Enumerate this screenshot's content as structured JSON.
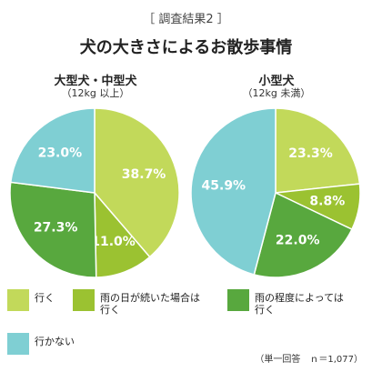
{
  "header": {
    "survey_label": "［ 調査結果2 ］",
    "title": "犬の大きさによるお散歩事情"
  },
  "colors": {
    "walk": "#c2d95a",
    "walk_rain": "#9bc231",
    "walk_moderate": "#58a83e",
    "no_walk": "#7fcfd3"
  },
  "legend": [
    {
      "key": "walk",
      "label": "行く"
    },
    {
      "key": "walk_rain",
      "label": "雨の日が続いた場合は\n行く"
    },
    {
      "key": "walk_moderate",
      "label": "雨の程度によっては\n行く"
    },
    {
      "key": "no_walk",
      "label": "行かない"
    }
  ],
  "footnote": "（単一回答　ｎ＝1,077）",
  "chart_data": [
    {
      "type": "pie",
      "title": "大型犬・中型犬",
      "subtitle": "（12kg 以上）",
      "slices": [
        {
          "key": "walk",
          "label": "行く",
          "value": 38.7,
          "text": "38.7%"
        },
        {
          "key": "walk_rain",
          "label": "雨の日が続いた場合は行く",
          "value": 11.0,
          "text": "11.0%"
        },
        {
          "key": "walk_moderate",
          "label": "雨の程度によっては行く",
          "value": 27.3,
          "text": "27.3%"
        },
        {
          "key": "no_walk",
          "label": "行かない",
          "value": 23.0,
          "text": "23.0%"
        }
      ]
    },
    {
      "type": "pie",
      "title": "小型犬",
      "subtitle": "（12kg 未満）",
      "slices": [
        {
          "key": "walk",
          "label": "行く",
          "value": 23.3,
          "text": "23.3%"
        },
        {
          "key": "walk_rain",
          "label": "雨の日が続いた場合は行く",
          "value": 8.8,
          "text": "8.8%"
        },
        {
          "key": "walk_moderate",
          "label": "雨の程度によっては行く",
          "value": 22.0,
          "text": "22.0%"
        },
        {
          "key": "no_walk",
          "label": "行かない",
          "value": 45.9,
          "text": "45.9%"
        }
      ]
    }
  ]
}
